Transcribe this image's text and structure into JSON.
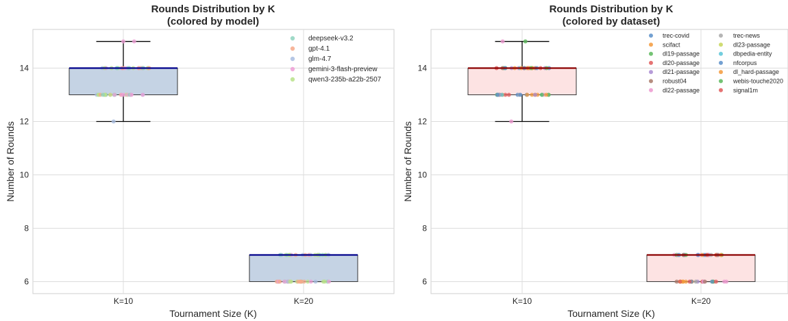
{
  "chart_data": [
    {
      "type": "box",
      "title": "Rounds Distribution by K",
      "subtitle": "(colored by model)",
      "xlabel": "Tournament Size (K)",
      "ylabel": "Number of Rounds",
      "categories": [
        "K=10",
        "K=20"
      ],
      "ylim": [
        5.55,
        15.45
      ],
      "yticks": [
        "6",
        "8",
        "10",
        "12",
        "14"
      ],
      "grid": true,
      "legend_position": "top-right",
      "box_fill": "#c5d3e4",
      "median_color": "#00008b",
      "boxes": [
        {
          "category": "K=10",
          "q1": 13,
          "median": 14,
          "q3": 14,
          "whisker_low": 12,
          "whisker_high": 15,
          "outliers": []
        },
        {
          "category": "K=20",
          "q1": 6,
          "median": 7,
          "q3": 7,
          "whisker_low": 6,
          "whisker_high": 7,
          "outliers": []
        }
      ],
      "series": [
        {
          "name": "deepseek-v3.2",
          "color": "#8fd3be"
        },
        {
          "name": "gpt-4.1",
          "color": "#f6a98a"
        },
        {
          "name": "glm-4.7",
          "color": "#a9bde0"
        },
        {
          "name": "gemini-3-flash-preview",
          "color": "#ee9fd6"
        },
        {
          "name": "qwen3-235b-a22b-2507",
          "color": "#b9e28a"
        }
      ],
      "points": [
        {
          "category": "K=10",
          "series": 3,
          "y": 15,
          "offset": 0.0
        },
        {
          "category": "K=10",
          "series": 3,
          "y": 15,
          "offset": 0.1
        },
        {
          "category": "K=10",
          "series": 2,
          "y": 12,
          "offset": -0.09
        }
      ]
    },
    {
      "type": "box",
      "title": "Rounds Distribution by K",
      "subtitle": "(colored by dataset)",
      "xlabel": "Tournament Size (K)",
      "ylabel": "Number of Rounds",
      "categories": [
        "K=10",
        "K=20"
      ],
      "ylim": [
        5.55,
        15.45
      ],
      "yticks": [
        "6",
        "8",
        "10",
        "12",
        "14"
      ],
      "grid": true,
      "legend_position": "top-right",
      "box_fill": "#fde3e3",
      "median_color": "#8b0000",
      "boxes": [
        {
          "category": "K=10",
          "q1": 13,
          "median": 14,
          "q3": 14,
          "whisker_low": 12,
          "whisker_high": 15,
          "outliers": []
        },
        {
          "category": "K=20",
          "q1": 6,
          "median": 7,
          "q3": 7,
          "whisker_low": 6,
          "whisker_high": 7,
          "outliers": []
        }
      ],
      "series": [
        {
          "name": "trec-covid",
          "color": "#5b8fc9"
        },
        {
          "name": "scifact",
          "color": "#f39a3b"
        },
        {
          "name": "dl19-passage",
          "color": "#5cb85c"
        },
        {
          "name": "dl20-passage",
          "color": "#e05a5a"
        },
        {
          "name": "dl21-passage",
          "color": "#a98bd1"
        },
        {
          "name": "robust04",
          "color": "#a97a6a"
        },
        {
          "name": "dl22-passage",
          "color": "#ec98cf"
        },
        {
          "name": "trec-news",
          "color": "#a8a8a8"
        },
        {
          "name": "dl23-passage",
          "color": "#c7d65a"
        },
        {
          "name": "dbpedia-entity",
          "color": "#5ac6d8"
        },
        {
          "name": "nfcorpus",
          "color": "#5b8fc9"
        },
        {
          "name": "dl_hard-passage",
          "color": "#f39a3b"
        },
        {
          "name": "webis-touche2020",
          "color": "#5cb85c"
        },
        {
          "name": "signal1m",
          "color": "#e05a5a"
        }
      ],
      "points": [
        {
          "category": "K=10",
          "series": 6,
          "y": 15,
          "offset": -0.18
        },
        {
          "category": "K=10",
          "series": 12,
          "y": 15,
          "offset": 0.03
        },
        {
          "category": "K=10",
          "series": 6,
          "y": 12,
          "offset": -0.1
        }
      ]
    }
  ]
}
